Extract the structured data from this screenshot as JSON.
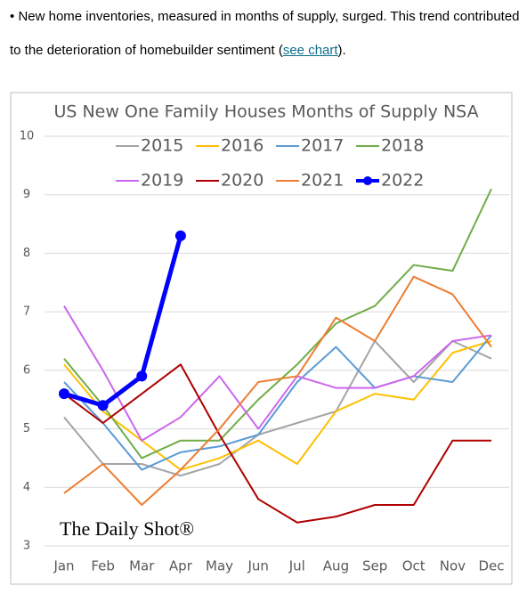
{
  "text": {
    "bullet": "•",
    "paragraph_line1": "New home inventories, measured in months of supply, surged. This trend contributed",
    "paragraph_line2_before": "to the deterioration of homebuilder sentiment (",
    "link": "see chart",
    "paragraph_line2_after": ")."
  },
  "chart_data": {
    "type": "line",
    "title": "US New One Family Houses Months of Supply NSA",
    "watermark": "The Daily Shot®",
    "categories": [
      "Jan",
      "Feb",
      "Mar",
      "Apr",
      "May",
      "Jun",
      "Jul",
      "Aug",
      "Sep",
      "Oct",
      "Nov",
      "Dec"
    ],
    "ylim": [
      3,
      10
    ],
    "yticks": [
      3,
      4,
      5,
      6,
      7,
      8,
      9,
      10
    ],
    "grid": true,
    "series": [
      {
        "name": "2015",
        "color": "#a5a5a5",
        "values": [
          5.2,
          4.4,
          4.4,
          4.2,
          4.4,
          4.9,
          5.1,
          5.3,
          6.5,
          5.8,
          6.5,
          6.2
        ]
      },
      {
        "name": "2016",
        "color": "#ffc000",
        "values": [
          6.1,
          5.3,
          4.8,
          4.3,
          4.5,
          4.8,
          4.4,
          5.3,
          5.6,
          5.5,
          6.3,
          6.5
        ]
      },
      {
        "name": "2017",
        "color": "#5b9bd5",
        "values": [
          5.8,
          5.1,
          4.3,
          4.6,
          4.7,
          4.9,
          5.8,
          6.4,
          5.7,
          5.9,
          5.8,
          6.6
        ]
      },
      {
        "name": "2018",
        "color": "#70ad47",
        "values": [
          6.2,
          5.4,
          4.5,
          4.8,
          4.8,
          5.5,
          6.1,
          6.8,
          7.1,
          7.8,
          7.7,
          9.1
        ]
      },
      {
        "name": "2019",
        "color": "#cc66ee",
        "values": [
          7.1,
          6.0,
          4.8,
          5.2,
          5.9,
          5.0,
          5.9,
          5.7,
          5.7,
          5.9,
          6.5,
          6.6
        ]
      },
      {
        "name": "2020",
        "color": "#b00000",
        "values": [
          5.6,
          5.1,
          5.6,
          6.1,
          4.9,
          3.8,
          3.4,
          3.5,
          3.7,
          3.7,
          4.8,
          4.8
        ]
      },
      {
        "name": "2021",
        "color": "#ed7d31",
        "values": [
          3.9,
          4.4,
          3.7,
          4.3,
          5.0,
          5.8,
          5.9,
          6.9,
          6.5,
          7.6,
          7.3,
          6.4
        ]
      },
      {
        "name": "2022",
        "color": "#0000ff",
        "markers": true,
        "values": [
          5.6,
          5.4,
          5.9,
          8.3,
          null,
          null,
          null,
          null,
          null,
          null,
          null,
          null
        ]
      }
    ]
  }
}
